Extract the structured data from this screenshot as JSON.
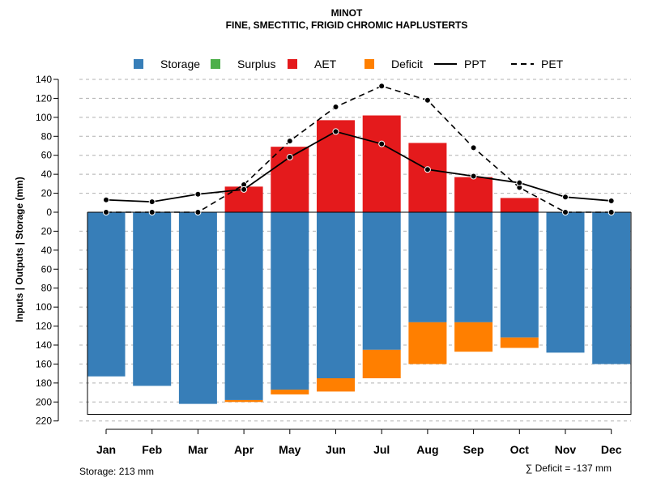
{
  "chart_data": {
    "type": "bar",
    "title": "MINOT",
    "subtitle": "FINE, SMECTITIC, FRIGID CHROMIC HAPLUSTERTS",
    "ylabel": "Inputs | Outputs | Storage    (mm)",
    "categories": [
      "Jan",
      "Feb",
      "Mar",
      "Apr",
      "May",
      "Jun",
      "Jul",
      "Aug",
      "Sep",
      "Oct",
      "Nov",
      "Dec"
    ],
    "ylim_up": [
      0,
      140
    ],
    "ylim_down": [
      0,
      220
    ],
    "yticks_up": [
      0,
      20,
      40,
      60,
      80,
      100,
      120,
      140
    ],
    "yticks_down": [
      20,
      40,
      60,
      80,
      100,
      120,
      140,
      160,
      180,
      200,
      220
    ],
    "tick_labels_up": [
      "0",
      "20",
      "40",
      "60",
      "80",
      "100",
      "120",
      "140"
    ],
    "tick_labels_down": [
      "20",
      "40",
      "60",
      "80",
      "100",
      "120",
      "140",
      "160",
      "180",
      "200",
      "220"
    ],
    "storage_capacity": 213,
    "series": [
      {
        "name": "Storage",
        "color": "#377EB8",
        "direction": "down",
        "values": [
          173,
          183,
          202,
          198,
          187,
          175,
          145,
          116,
          116,
          132,
          148,
          160
        ]
      },
      {
        "name": "Surplus",
        "color": "#4DAF4A",
        "direction": "down",
        "values": [
          0,
          0,
          0,
          0,
          0,
          0,
          0,
          0,
          0,
          0,
          0,
          0
        ]
      },
      {
        "name": "AET",
        "color": "#E41A1C",
        "direction": "up",
        "values": [
          0,
          0,
          0,
          27,
          69,
          97,
          102,
          73,
          37,
          15,
          0,
          0
        ]
      },
      {
        "name": "Deficit",
        "color": "#FF7F00",
        "direction": "down",
        "values": [
          0,
          0,
          0,
          2,
          5,
          14,
          30,
          44,
          31,
          11,
          0,
          0
        ]
      },
      {
        "name": "PPT",
        "style": "solid",
        "values": [
          13,
          11,
          19,
          24,
          58,
          85,
          72,
          45,
          38,
          31,
          16,
          12
        ]
      },
      {
        "name": "PET",
        "style": "dashed",
        "values": [
          0,
          0,
          0,
          29,
          75,
          111,
          133,
          118,
          68,
          26,
          0,
          0
        ]
      }
    ],
    "legend": {
      "position": "top",
      "entries": [
        {
          "label": "Storage",
          "symbol": "square",
          "color": "#377EB8"
        },
        {
          "label": "Surplus",
          "symbol": "square",
          "color": "#4DAF4A"
        },
        {
          "label": "AET",
          "symbol": "square",
          "color": "#E41A1C"
        },
        {
          "label": "Deficit",
          "symbol": "square",
          "color": "#FF7F00"
        },
        {
          "label": "PPT",
          "symbol": "line-solid",
          "color": "#000000"
        },
        {
          "label": "PET",
          "symbol": "line-dashed",
          "color": "#000000"
        }
      ]
    },
    "footer_left": "Storage: 213 mm",
    "footer_right": "∑ Deficit = -137 mm"
  }
}
